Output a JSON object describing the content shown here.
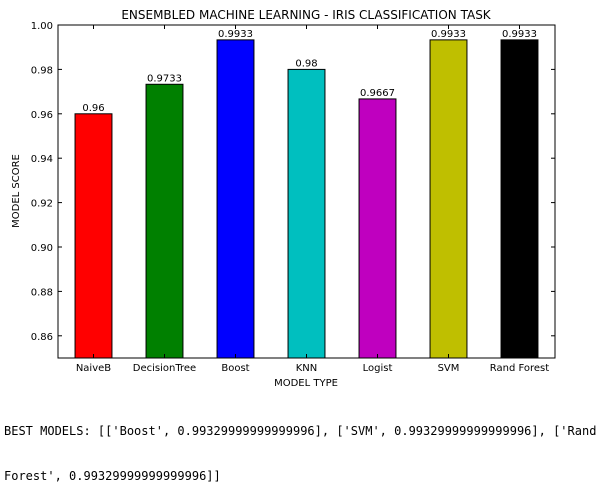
{
  "chart_data": {
    "type": "bar",
    "title": "ENSEMBLED MACHINE LEARNING - IRIS CLASSIFICATION TASK",
    "xlabel": "MODEL TYPE",
    "ylabel": "MODEL SCORE",
    "ylim": [
      0.85,
      1.0
    ],
    "yticks": [
      "0.86",
      "0.88",
      "0.90",
      "0.92",
      "0.94",
      "0.96",
      "0.98",
      "1.00"
    ],
    "categories": [
      "NaiveB",
      "DecisionTree",
      "Boost",
      "KNN",
      "Logist",
      "SVM",
      "Rand Forest"
    ],
    "values": [
      0.96,
      0.9733,
      0.9933,
      0.98,
      0.9667,
      0.9933,
      0.9933
    ],
    "value_labels": [
      "0.96",
      "0.9733",
      "0.9933",
      "0.98",
      "0.9667",
      "0.9933",
      "0.9933"
    ],
    "colors": [
      "#ff0000",
      "#008000",
      "#0000ff",
      "#00bfbf",
      "#bf00bf",
      "#bfbf00",
      "#000000"
    ],
    "grid": false,
    "legend": "none"
  },
  "console_output": {
    "line1": "BEST MODELS: [['Boost', 0.99329999999999996], ['SVM', 0.99329999999999996], ['Rand",
    "line2": "Forest', 0.99329999999999996]]"
  }
}
